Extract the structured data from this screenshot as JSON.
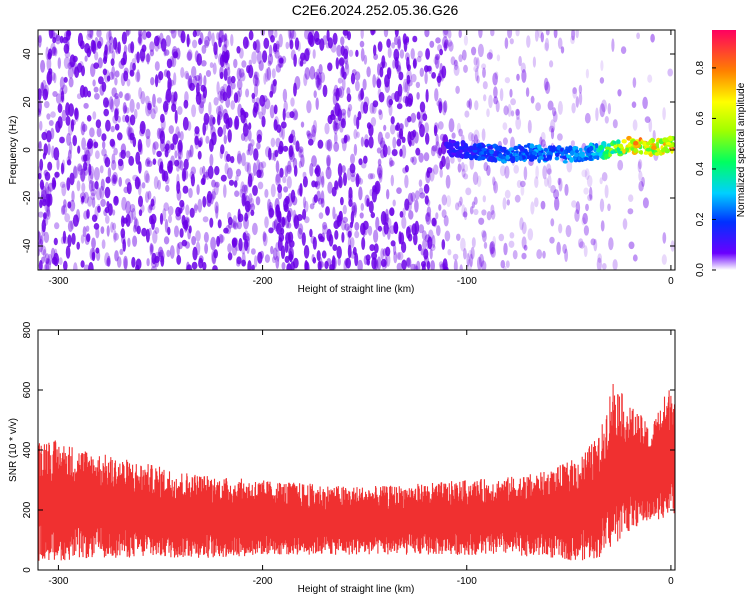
{
  "figure": {
    "title": "C2E6.2024.252.05.36.G26"
  },
  "chart_data": [
    {
      "type": "heatmap",
      "xlabel": "Height of straight line (km)",
      "ylabel": "Frequency (Hz)",
      "xlim": [
        -310,
        2
      ],
      "ylim": [
        -50,
        50
      ],
      "x_ticks": [
        -300,
        -200,
        -100,
        0
      ],
      "y_ticks": [
        -40,
        -20,
        0,
        20,
        40
      ],
      "colorbar": {
        "label": "Normalized spectral amplitude",
        "range": [
          0.0,
          0.95
        ],
        "ticks": [
          0.0,
          0.2,
          0.4,
          0.6,
          0.8
        ],
        "colors": [
          "#ffffff",
          "#6a00ff",
          "#0030ff",
          "#00d0ff",
          "#00ff60",
          "#a0ff00",
          "#ffff00",
          "#ff8000",
          "#ff0060"
        ]
      },
      "noise_color": "#6a00e6",
      "signal_trace": {
        "description_points_x": [
          -108,
          -100,
          -90,
          -80,
          -70,
          -60,
          -50,
          -40,
          -30,
          -20,
          -10,
          0
        ],
        "frequency_hz": [
          1,
          0,
          -1,
          -2,
          -1,
          -2,
          -2,
          -1,
          0,
          2,
          1,
          2
        ],
        "amplitude": [
          0.15,
          0.2,
          0.25,
          0.3,
          0.3,
          0.3,
          0.3,
          0.35,
          0.55,
          0.8,
          0.85,
          0.9
        ]
      }
    },
    {
      "type": "area",
      "xlabel": "Height of straight line (km)",
      "ylabel": "SNR (10 * v/v)",
      "xlim": [
        -310,
        2
      ],
      "ylim": [
        0,
        800
      ],
      "x_ticks": [
        -300,
        -200,
        -100,
        0
      ],
      "y_ticks": [
        0,
        200,
        400,
        600,
        800
      ],
      "color": "#f03030",
      "envelope": {
        "x": [
          -310,
          -300,
          -280,
          -260,
          -240,
          -220,
          -200,
          -180,
          -160,
          -140,
          -120,
          -100,
          -80,
          -60,
          -45,
          -35,
          -28,
          -22,
          -15,
          -10,
          -5,
          0
        ],
        "upper": [
          450,
          430,
          390,
          360,
          330,
          310,
          300,
          290,
          280,
          280,
          290,
          300,
          310,
          330,
          380,
          450,
          650,
          560,
          520,
          470,
          560,
          620
        ],
        "lower": [
          30,
          30,
          40,
          40,
          40,
          40,
          50,
          50,
          50,
          50,
          50,
          50,
          50,
          40,
          30,
          40,
          80,
          120,
          150,
          160,
          170,
          180
        ]
      }
    }
  ]
}
